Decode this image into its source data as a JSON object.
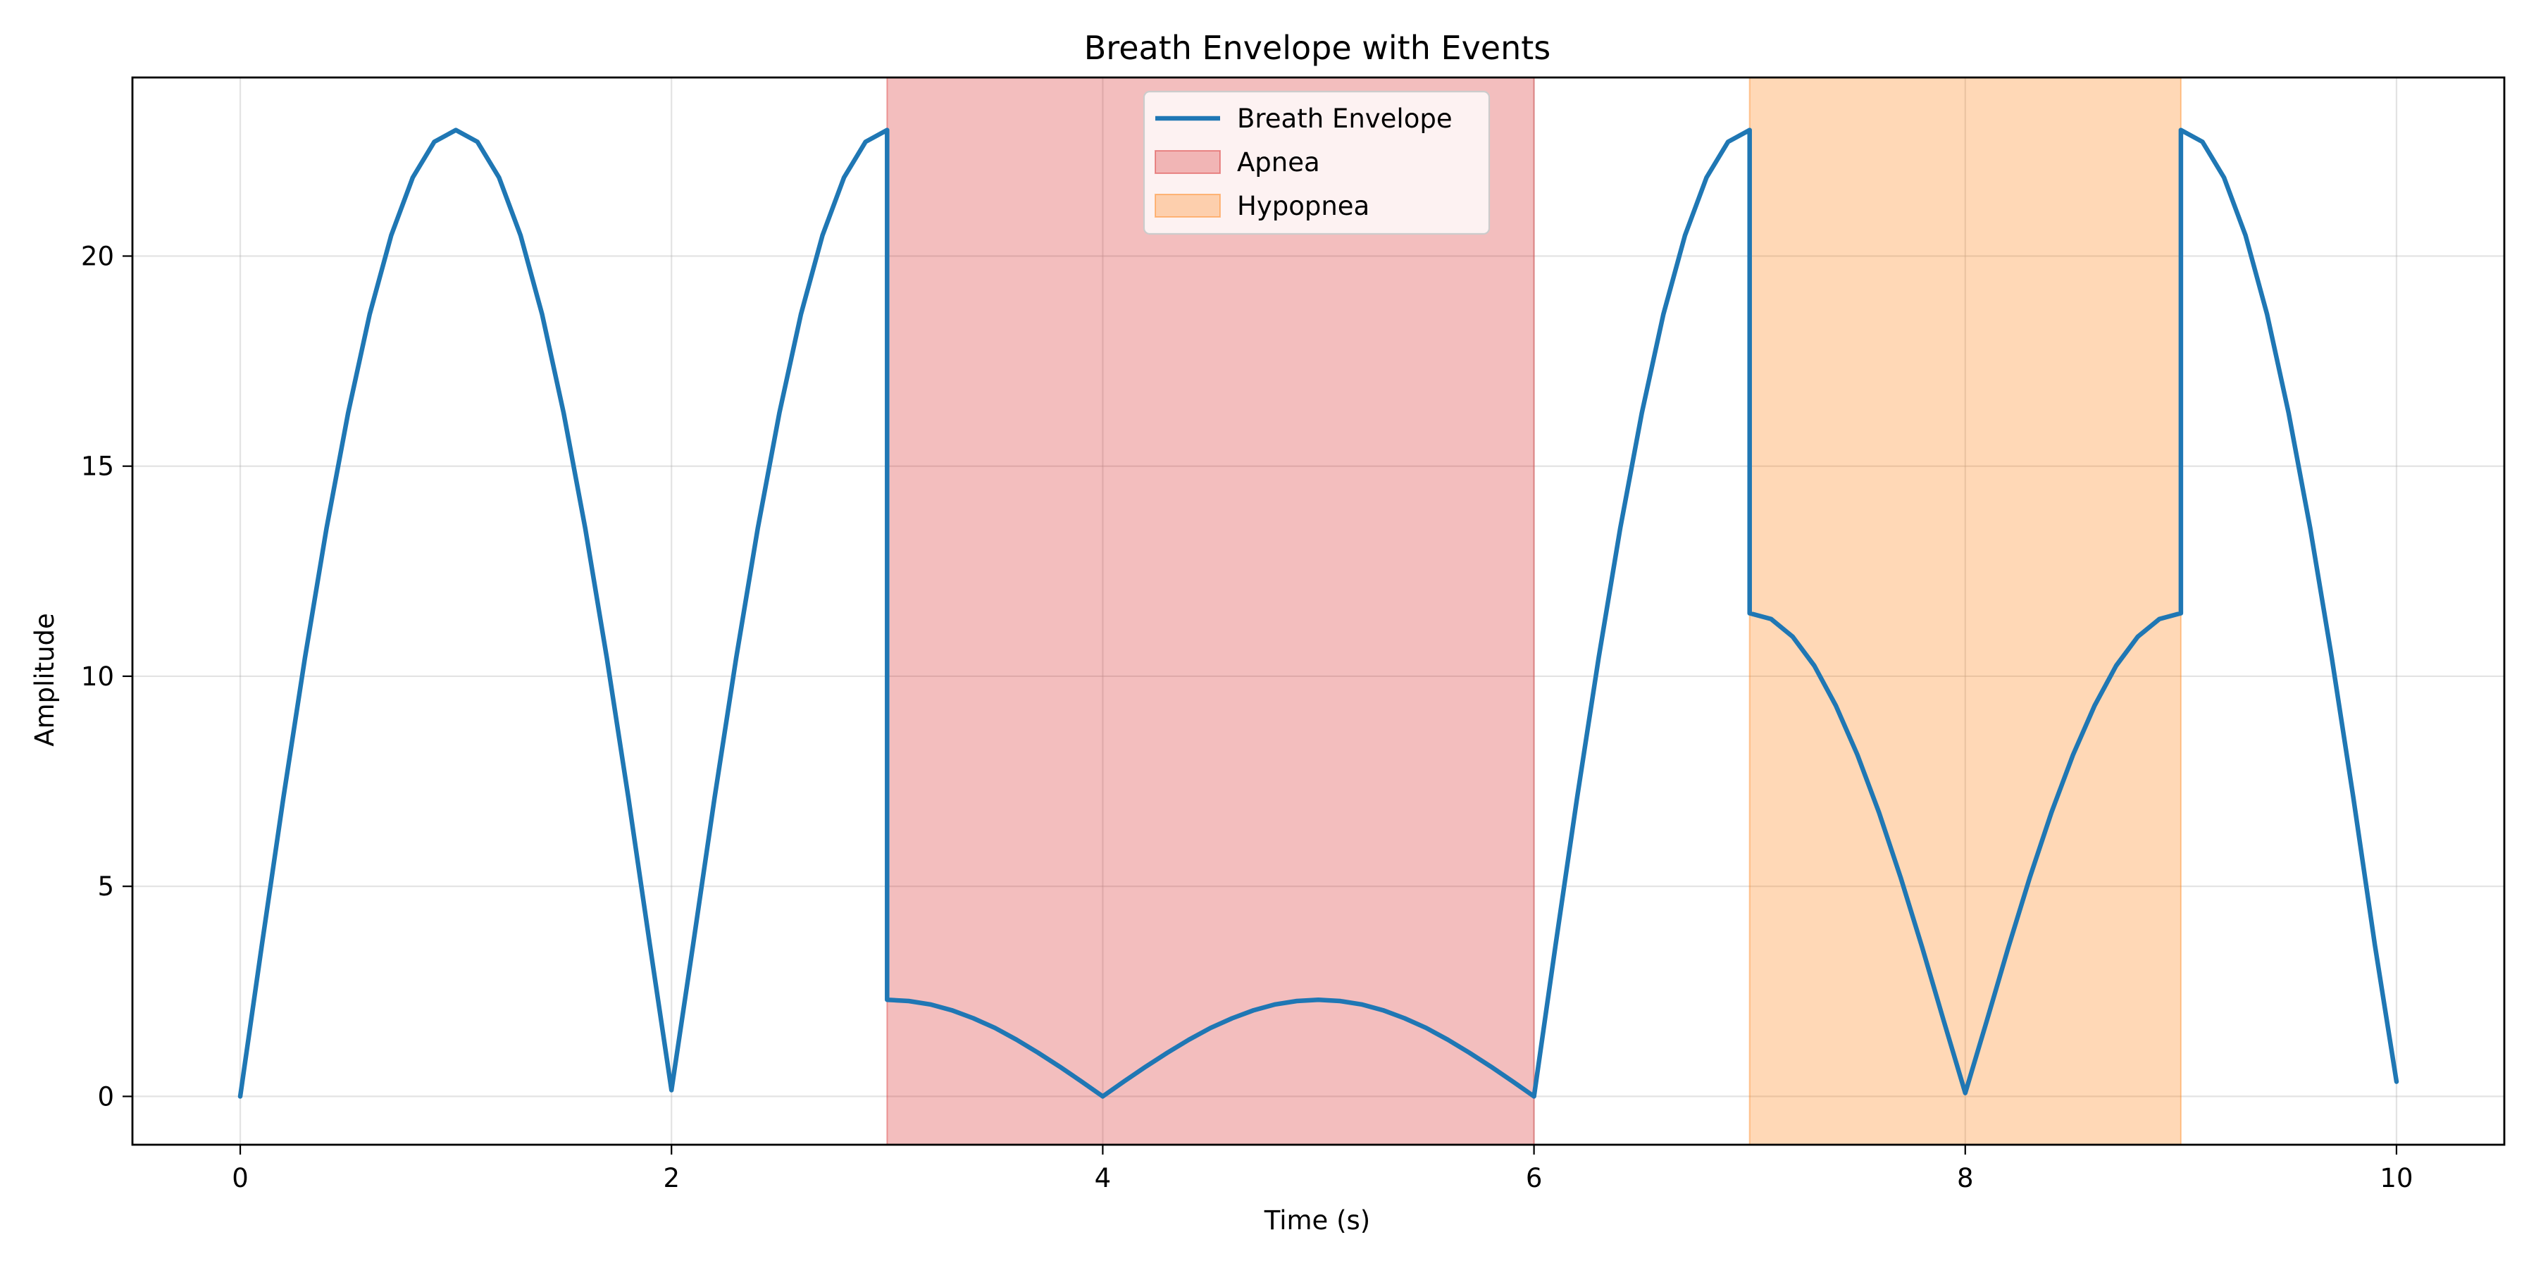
{
  "chart_data": {
    "type": "line",
    "title": "Breath Envelope with Events",
    "xlabel": "Time (s)",
    "ylabel": "Amplitude",
    "xlim": [
      -0.5,
      10.5
    ],
    "ylim": [
      -1.15,
      24.25
    ],
    "xticks": [
      0,
      2,
      4,
      6,
      8,
      10
    ],
    "yticks": [
      0,
      5,
      10,
      15,
      20
    ],
    "grid": true,
    "legend_position": "top-center",
    "series": [
      {
        "name": "Breath Envelope",
        "color": "#1f77b4",
        "x": [
          0,
          0.1,
          0.2,
          0.3,
          0.4,
          0.5,
          0.6,
          0.7,
          0.8,
          0.9,
          1.0,
          1.1,
          1.2,
          1.3,
          1.4,
          1.5,
          1.6,
          1.7,
          1.8,
          1.9,
          2.0,
          2.1,
          2.2,
          2.3,
          2.4,
          2.5,
          2.6,
          2.7,
          2.8,
          2.9,
          3.0,
          3.0,
          3.1,
          3.2,
          3.3,
          3.4,
          3.5,
          3.6,
          3.7,
          3.8,
          3.9,
          4.0,
          4.1,
          4.2,
          4.3,
          4.4,
          4.5,
          4.6,
          4.7,
          4.8,
          4.9,
          5.0,
          5.1,
          5.2,
          5.3,
          5.4,
          5.5,
          5.6,
          5.7,
          5.8,
          5.9,
          6.0,
          6.1,
          6.2,
          6.3,
          6.4,
          6.5,
          6.6,
          6.7,
          6.8,
          6.9,
          7.0,
          7.0,
          7.1,
          7.2,
          7.3,
          7.4,
          7.5,
          7.6,
          7.7,
          7.8,
          7.9,
          8.0,
          8.1,
          8.2,
          8.3,
          8.4,
          8.5,
          8.6,
          8.7,
          8.8,
          8.9,
          9.0,
          9.0,
          9.1,
          9.2,
          9.3,
          9.4,
          9.5,
          9.6,
          9.7,
          9.8,
          9.9,
          10.0
        ],
        "y": [
          0,
          3.6,
          7.11,
          10.44,
          13.52,
          16.26,
          18.61,
          20.49,
          21.87,
          22.72,
          23.0,
          22.72,
          21.87,
          20.49,
          18.61,
          16.26,
          13.52,
          10.44,
          7.11,
          3.6,
          0.15,
          3.6,
          7.11,
          10.44,
          13.52,
          16.26,
          18.61,
          20.49,
          21.87,
          22.72,
          23.0,
          2.3,
          2.27,
          2.19,
          2.05,
          1.86,
          1.63,
          1.35,
          1.04,
          0.71,
          0.36,
          0.0,
          0.36,
          0.71,
          1.04,
          1.35,
          1.63,
          1.86,
          2.05,
          2.19,
          2.27,
          2.3,
          2.27,
          2.19,
          2.05,
          1.86,
          1.63,
          1.35,
          1.04,
          0.71,
          0.36,
          0.0,
          3.6,
          7.11,
          10.44,
          13.52,
          16.26,
          18.61,
          20.49,
          21.87,
          22.72,
          23.0,
          11.5,
          11.36,
          10.94,
          10.25,
          9.3,
          8.13,
          6.76,
          5.22,
          3.55,
          1.8,
          0.08,
          1.8,
          3.55,
          5.22,
          6.76,
          8.13,
          9.3,
          10.25,
          10.94,
          11.36,
          11.5,
          23.0,
          22.72,
          21.87,
          20.49,
          18.61,
          16.26,
          13.52,
          10.44,
          7.11,
          3.6,
          0.35
        ]
      }
    ],
    "shaded_regions": [
      {
        "name": "Apnea",
        "start": 3,
        "end": 6,
        "color": "#d62728"
      },
      {
        "name": "Hypopnea",
        "start": 7,
        "end": 9,
        "color": "#ff7f0e"
      }
    ]
  }
}
